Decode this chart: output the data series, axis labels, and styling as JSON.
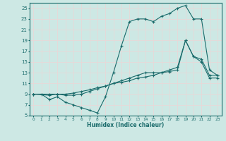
{
  "xlabel": "Humidex (Indice chaleur)",
  "xlim": [
    -0.5,
    23.5
  ],
  "ylim": [
    5,
    26
  ],
  "yticks": [
    5,
    7,
    9,
    11,
    13,
    15,
    17,
    19,
    21,
    23,
    25
  ],
  "xticks": [
    0,
    1,
    2,
    3,
    4,
    5,
    6,
    7,
    8,
    9,
    10,
    11,
    12,
    13,
    14,
    15,
    16,
    17,
    18,
    19,
    20,
    21,
    22,
    23
  ],
  "bg_color": "#cde8e4",
  "line_color": "#1a6b6b",
  "grid_color": "#e8d8d8",
  "line1_x": [
    0,
    1,
    2,
    3,
    4,
    5,
    6,
    7,
    8,
    9,
    10,
    11,
    12,
    13,
    14,
    15,
    16,
    17,
    18,
    19,
    20,
    21,
    22,
    23
  ],
  "line1_y": [
    9,
    9,
    8,
    8.5,
    7.5,
    7,
    6.5,
    6,
    5.5,
    8.5,
    13,
    18,
    22.5,
    23,
    23,
    22.5,
    23.5,
    24,
    25,
    25.5,
    23.0,
    23.0,
    13.5,
    12.5
  ],
  "line2_x": [
    0,
    2,
    3,
    4,
    5,
    6,
    7,
    8,
    9,
    10,
    11,
    12,
    13,
    14,
    15,
    16,
    17,
    18,
    19,
    20,
    21,
    22,
    23
  ],
  "line2_y": [
    9,
    9,
    9,
    9,
    9.2,
    9.5,
    9.8,
    10.2,
    10.5,
    11.0,
    11.2,
    11.5,
    12.0,
    12.2,
    12.5,
    13.0,
    13.2,
    13.5,
    19.0,
    16.0,
    15.5,
    12.5,
    12.5
  ],
  "line3_x": [
    0,
    2,
    3,
    4,
    5,
    6,
    7,
    8,
    9,
    10,
    11,
    12,
    13,
    14,
    15,
    16,
    17,
    18,
    19,
    20,
    21,
    22,
    23
  ],
  "line3_y": [
    9,
    8.8,
    9.0,
    8.8,
    8.8,
    9.0,
    9.5,
    10.0,
    10.5,
    11.0,
    11.5,
    12.0,
    12.5,
    13.0,
    13.0,
    13.0,
    13.5,
    14.0,
    19.0,
    16.0,
    15.0,
    12.0,
    12.0
  ]
}
